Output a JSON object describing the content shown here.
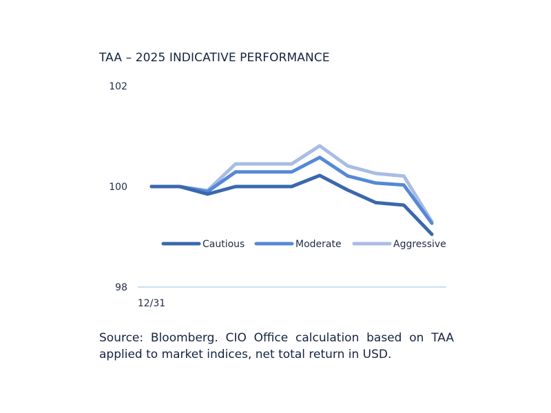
{
  "chart_data": {
    "type": "line",
    "title": "TAA – 2025 INDICATIVE PERFORMANCE",
    "xlabel": "",
    "ylabel": "",
    "x": [
      "12/31",
      "",
      "",
      "",
      "",
      "",
      "",
      "",
      "",
      "",
      ""
    ],
    "x_tick_labels": [
      "12/31"
    ],
    "y_ticks": [
      "98",
      "100",
      "102"
    ],
    "ylim": [
      98,
      102
    ],
    "grid": false,
    "legend_position": "inside-bottom",
    "series": [
      {
        "name": "Cautious",
        "color": "#3a68ad",
        "values": [
          100.0,
          100.0,
          99.85,
          100.0,
          100.0,
          100.0,
          100.22,
          99.93,
          99.68,
          99.63,
          99.05
        ]
      },
      {
        "name": "Moderate",
        "color": "#5589d6",
        "values": [
          100.0,
          100.0,
          99.9,
          100.29,
          100.29,
          100.29,
          100.58,
          100.21,
          100.07,
          100.03,
          99.27
        ]
      },
      {
        "name": "Aggressive",
        "color": "#a9bce4",
        "values": [
          100.0,
          100.0,
          99.92,
          100.45,
          100.45,
          100.45,
          100.81,
          100.41,
          100.26,
          100.21,
          99.3
        ]
      }
    ]
  },
  "footer": {
    "source": "Source: Bloomberg. CIO Office calculation based on TAA applied to market indices, net total return in USD."
  }
}
